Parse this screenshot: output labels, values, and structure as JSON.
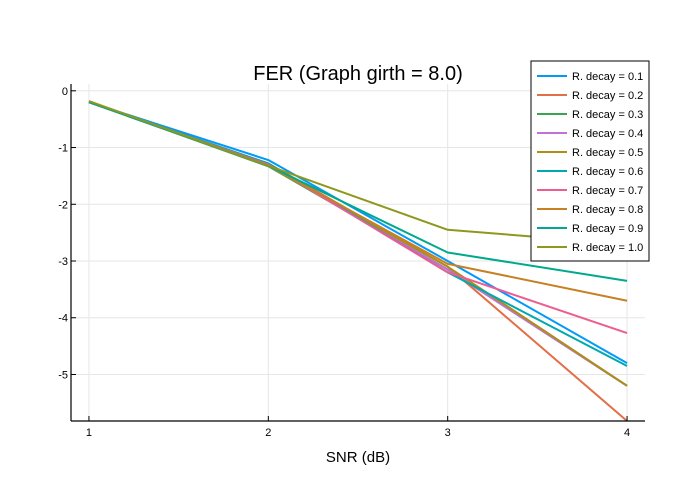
{
  "chart_data": {
    "type": "line",
    "title": "FER (Graph girth = 8.0)",
    "xlabel": "SNR (dB)",
    "ylabel": "",
    "x": [
      1,
      2,
      3,
      4
    ],
    "xlim": [
      0.9,
      4.1
    ],
    "ylim": [
      -5.82,
      0.12
    ],
    "xticks": [
      1,
      2,
      3,
      4
    ],
    "yticks": [
      0,
      -1,
      -2,
      -3,
      -4,
      -5
    ],
    "grid": true,
    "legend_position": "top-right",
    "series": [
      {
        "name": "R. decay = 0.1",
        "color": "#009AFA",
        "values": [
          -0.2,
          -1.22,
          -3.0,
          -4.8
        ]
      },
      {
        "name": "R. decay = 0.2",
        "color": "#E26F46",
        "values": [
          -0.2,
          -1.28,
          -3.1,
          -5.82
        ]
      },
      {
        "name": "R. decay = 0.3",
        "color": "#3DA44E",
        "values": [
          -0.2,
          -1.33,
          -3.15,
          -5.2
        ]
      },
      {
        "name": "R. decay = 0.4",
        "color": "#C271D2",
        "values": [
          -0.2,
          -1.3,
          -3.15,
          -5.2
        ]
      },
      {
        "name": "R. decay = 0.5",
        "color": "#AC8E18",
        "values": [
          -0.2,
          -1.32,
          -3.1,
          -5.2
        ]
      },
      {
        "name": "R. decay = 0.6",
        "color": "#00A9AD",
        "values": [
          -0.2,
          -1.28,
          -3.2,
          -4.85
        ]
      },
      {
        "name": "R. decay = 0.7",
        "color": "#ED5D92",
        "values": [
          -0.2,
          -1.3,
          -3.2,
          -4.27
        ]
      },
      {
        "name": "R. decay = 0.8",
        "color": "#C68125",
        "values": [
          -0.2,
          -1.32,
          -3.05,
          -3.7
        ]
      },
      {
        "name": "R. decay = 0.9",
        "color": "#00A98D",
        "values": [
          -0.2,
          -1.32,
          -2.85,
          -3.35
        ]
      },
      {
        "name": "R. decay = 1.0",
        "color": "#8E971E",
        "values": [
          -0.18,
          -1.32,
          -2.45,
          -2.7
        ]
      }
    ]
  }
}
